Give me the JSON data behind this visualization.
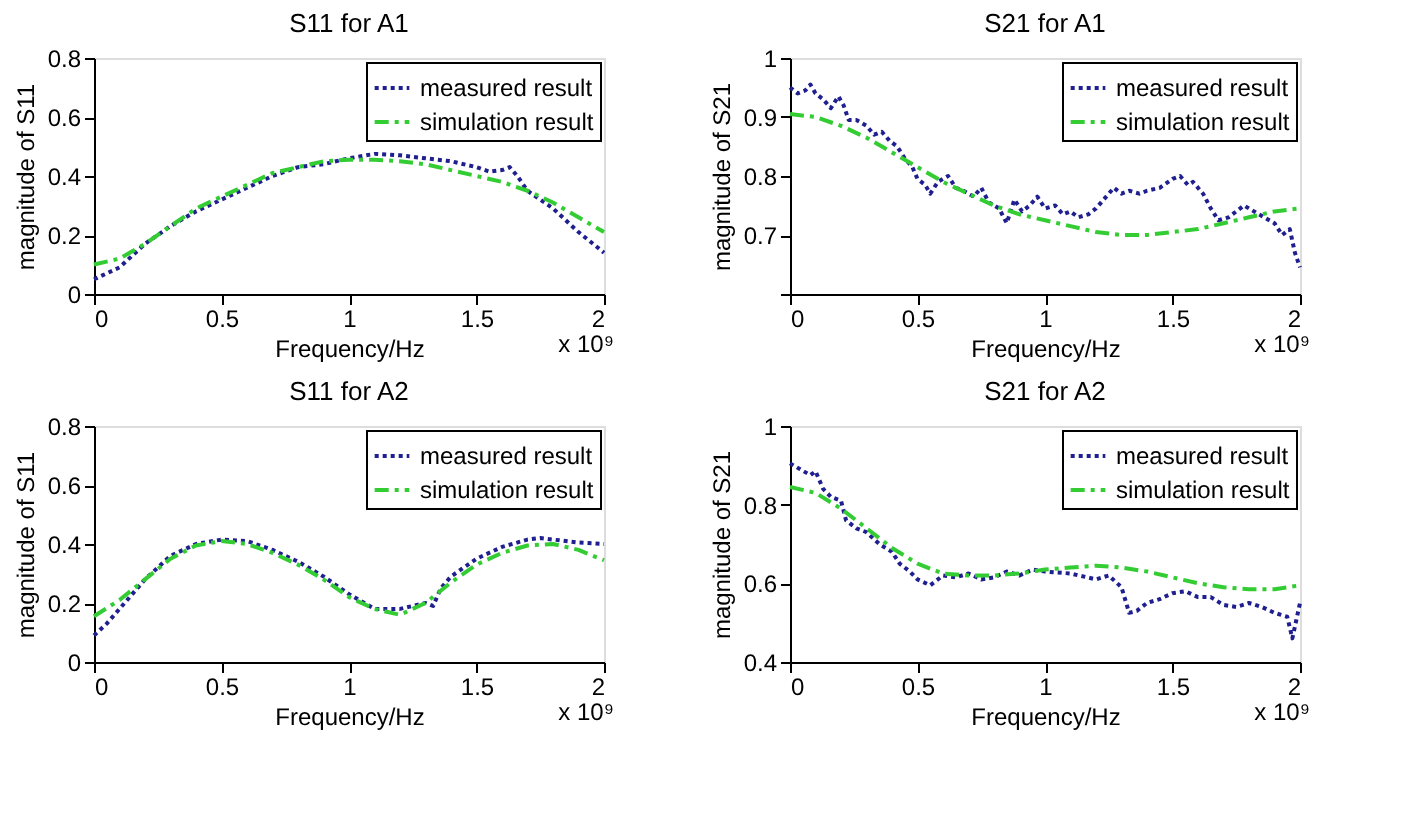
{
  "chart_data": [
    {
      "type": "line",
      "title": "S11 for A1",
      "xlabel": "Frequency/Hz",
      "ylabel": "magnitude of S11",
      "annotations": [
        "x 10⁹"
      ],
      "xlim": [
        0,
        2
      ],
      "xticks": [
        0,
        0.5,
        1,
        1.5,
        2
      ],
      "ylim": [
        0,
        0.8
      ],
      "yticks": [
        0,
        0.2,
        0.4,
        0.6,
        0.8
      ],
      "grid": false,
      "legend": "top right",
      "marker": "none",
      "series": [
        {
          "name": "measured result",
          "color": "#1f1f8f",
          "line_style": "dotted",
          "x": [
            0,
            0.05,
            0.1,
            0.15,
            0.2,
            0.3,
            0.4,
            0.5,
            0.6,
            0.7,
            0.8,
            0.9,
            1.0,
            1.1,
            1.2,
            1.3,
            1.4,
            1.5,
            1.55,
            1.6,
            1.63,
            1.66,
            1.7,
            1.8,
            1.9,
            2.0
          ],
          "values": [
            0.05,
            0.07,
            0.09,
            0.13,
            0.17,
            0.23,
            0.28,
            0.32,
            0.36,
            0.4,
            0.43,
            0.44,
            0.46,
            0.475,
            0.47,
            0.46,
            0.45,
            0.43,
            0.415,
            0.42,
            0.43,
            0.4,
            0.35,
            0.29,
            0.21,
            0.14
          ]
        },
        {
          "name": "simulation result",
          "color": "#33cc33",
          "line_style": "dashed",
          "x": [
            0,
            0.1,
            0.2,
            0.3,
            0.4,
            0.5,
            0.6,
            0.7,
            0.8,
            0.9,
            1.0,
            1.1,
            1.2,
            1.3,
            1.4,
            1.5,
            1.6,
            1.7,
            1.8,
            1.9,
            2.0
          ],
          "values": [
            0.1,
            0.12,
            0.17,
            0.23,
            0.29,
            0.33,
            0.37,
            0.41,
            0.43,
            0.45,
            0.455,
            0.455,
            0.45,
            0.44,
            0.42,
            0.4,
            0.38,
            0.35,
            0.31,
            0.26,
            0.21
          ]
        }
      ]
    },
    {
      "type": "line",
      "title": "S21 for A1",
      "xlabel": "Frequency/Hz",
      "ylabel": "magnitude of S21",
      "annotations": [
        "x 10⁹"
      ],
      "xlim": [
        0,
        2
      ],
      "xticks": [
        0,
        0.5,
        1,
        1.5,
        2
      ],
      "ylim": [
        0.6,
        1
      ],
      "yticks": [
        {
          "value": 0.6,
          "label": null
        },
        0.7,
        0.8,
        0.9,
        1
      ],
      "grid": false,
      "legend": "top right",
      "marker": "none",
      "series": [
        {
          "name": "measured result",
          "color": "#1f1f8f",
          "line_style": "dotted",
          "x": [
            0,
            0.03,
            0.06,
            0.08,
            0.1,
            0.13,
            0.16,
            0.19,
            0.21,
            0.23,
            0.26,
            0.3,
            0.33,
            0.36,
            0.39,
            0.42,
            0.45,
            0.48,
            0.5,
            0.53,
            0.55,
            0.58,
            0.62,
            0.65,
            0.68,
            0.72,
            0.75,
            0.78,
            0.82,
            0.85,
            0.88,
            0.91,
            0.94,
            0.97,
            1.0,
            1.04,
            1.07,
            1.1,
            1.13,
            1.17,
            1.2,
            1.23,
            1.27,
            1.3,
            1.33,
            1.37,
            1.4,
            1.45,
            1.5,
            1.53,
            1.56,
            1.58,
            1.62,
            1.65,
            1.68,
            1.72,
            1.75,
            1.78,
            1.82,
            1.86,
            1.9,
            1.93,
            1.96,
            1.98,
            2.0
          ],
          "values": [
            0.95,
            0.94,
            0.945,
            0.955,
            0.94,
            0.93,
            0.915,
            0.935,
            0.92,
            0.895,
            0.895,
            0.885,
            0.87,
            0.875,
            0.86,
            0.85,
            0.83,
            0.815,
            0.795,
            0.785,
            0.77,
            0.79,
            0.8,
            0.78,
            0.775,
            0.765,
            0.78,
            0.755,
            0.745,
            0.72,
            0.76,
            0.74,
            0.75,
            0.765,
            0.745,
            0.75,
            0.735,
            0.74,
            0.73,
            0.735,
            0.745,
            0.76,
            0.78,
            0.77,
            0.775,
            0.77,
            0.775,
            0.78,
            0.795,
            0.8,
            0.785,
            0.79,
            0.77,
            0.745,
            0.725,
            0.73,
            0.74,
            0.75,
            0.74,
            0.73,
            0.72,
            0.7,
            0.71,
            0.67,
            0.645
          ]
        },
        {
          "name": "simulation result",
          "color": "#33cc33",
          "line_style": "dashed",
          "x": [
            0,
            0.1,
            0.2,
            0.3,
            0.4,
            0.5,
            0.6,
            0.7,
            0.8,
            0.9,
            1.0,
            1.1,
            1.2,
            1.3,
            1.4,
            1.5,
            1.6,
            1.7,
            1.8,
            1.9,
            2.0
          ],
          "values": [
            0.905,
            0.9,
            0.885,
            0.865,
            0.84,
            0.815,
            0.79,
            0.77,
            0.75,
            0.735,
            0.725,
            0.715,
            0.705,
            0.7,
            0.7,
            0.705,
            0.71,
            0.72,
            0.73,
            0.74,
            0.745
          ]
        }
      ]
    },
    {
      "type": "line",
      "title": "S11 for A2",
      "xlabel": "Frequency/Hz",
      "ylabel": "magnitude of S11",
      "annotations": [
        "x 10⁹"
      ],
      "xlim": [
        0,
        2
      ],
      "xticks": [
        0,
        0.5,
        1,
        1.5,
        2
      ],
      "ylim": [
        0,
        0.8
      ],
      "yticks": [
        0,
        0.2,
        0.4,
        0.6,
        0.8
      ],
      "grid": false,
      "legend": "top right",
      "marker": "none",
      "series": [
        {
          "name": "measured result",
          "color": "#1f1f8f",
          "line_style": "dotted",
          "x": [
            0,
            0.05,
            0.1,
            0.2,
            0.3,
            0.4,
            0.5,
            0.6,
            0.7,
            0.8,
            0.9,
            1.0,
            1.1,
            1.2,
            1.3,
            1.33,
            1.36,
            1.4,
            1.5,
            1.6,
            1.7,
            1.75,
            1.8,
            1.9,
            2.0
          ],
          "values": [
            0.09,
            0.13,
            0.18,
            0.28,
            0.36,
            0.4,
            0.415,
            0.41,
            0.38,
            0.34,
            0.29,
            0.23,
            0.18,
            0.18,
            0.2,
            0.19,
            0.25,
            0.29,
            0.35,
            0.39,
            0.415,
            0.42,
            0.415,
            0.405,
            0.4
          ]
        },
        {
          "name": "simulation result",
          "color": "#33cc33",
          "line_style": "dashed",
          "x": [
            0,
            0.1,
            0.2,
            0.3,
            0.4,
            0.5,
            0.6,
            0.7,
            0.8,
            0.9,
            1.0,
            1.1,
            1.2,
            1.3,
            1.4,
            1.5,
            1.6,
            1.7,
            1.8,
            1.9,
            2.0
          ],
          "values": [
            0.155,
            0.21,
            0.28,
            0.35,
            0.395,
            0.41,
            0.4,
            0.37,
            0.33,
            0.28,
            0.22,
            0.18,
            0.16,
            0.2,
            0.27,
            0.33,
            0.37,
            0.395,
            0.4,
            0.38,
            0.345
          ]
        }
      ]
    },
    {
      "type": "line",
      "title": "S21 for A2",
      "xlabel": "Frequency/Hz",
      "ylabel": "magnitude of S21",
      "annotations": [
        "x 10⁹"
      ],
      "xlim": [
        0,
        2
      ],
      "xticks": [
        0,
        0.5,
        1,
        1.5,
        2
      ],
      "ylim": [
        0.4,
        1
      ],
      "yticks": [
        0.4,
        0.6,
        0.8,
        1
      ],
      "grid": false,
      "legend": "top right",
      "marker": "none",
      "series": [
        {
          "name": "measured result",
          "color": "#1f1f8f",
          "line_style": "dotted",
          "x": [
            0,
            0.04,
            0.08,
            0.1,
            0.13,
            0.16,
            0.2,
            0.22,
            0.26,
            0.3,
            0.35,
            0.4,
            0.43,
            0.47,
            0.5,
            0.55,
            0.6,
            0.65,
            0.7,
            0.75,
            0.8,
            0.85,
            0.9,
            0.95,
            1.0,
            1.1,
            1.2,
            1.25,
            1.3,
            1.33,
            1.36,
            1.4,
            1.45,
            1.5,
            1.55,
            1.6,
            1.65,
            1.7,
            1.75,
            1.8,
            1.85,
            1.9,
            1.95,
            1.97,
            2.0
          ],
          "values": [
            0.905,
            0.89,
            0.875,
            0.885,
            0.84,
            0.82,
            0.81,
            0.76,
            0.74,
            0.73,
            0.7,
            0.68,
            0.65,
            0.63,
            0.61,
            0.595,
            0.62,
            0.615,
            0.625,
            0.61,
            0.615,
            0.63,
            0.62,
            0.635,
            0.63,
            0.625,
            0.61,
            0.62,
            0.59,
            0.525,
            0.53,
            0.55,
            0.56,
            0.575,
            0.58,
            0.565,
            0.565,
            0.545,
            0.54,
            0.55,
            0.54,
            0.525,
            0.515,
            0.46,
            0.55
          ]
        },
        {
          "name": "simulation result",
          "color": "#33cc33",
          "line_style": "dashed",
          "x": [
            0,
            0.1,
            0.2,
            0.3,
            0.4,
            0.5,
            0.6,
            0.7,
            0.8,
            0.9,
            1.0,
            1.1,
            1.2,
            1.3,
            1.4,
            1.5,
            1.6,
            1.7,
            1.8,
            1.9,
            2.0
          ],
          "values": [
            0.845,
            0.83,
            0.79,
            0.74,
            0.69,
            0.65,
            0.625,
            0.62,
            0.62,
            0.625,
            0.635,
            0.64,
            0.645,
            0.64,
            0.63,
            0.615,
            0.6,
            0.59,
            0.585,
            0.585,
            0.595
          ]
        }
      ]
    }
  ]
}
